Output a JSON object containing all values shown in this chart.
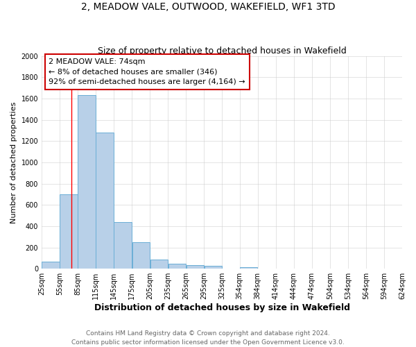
{
  "title": "2, MEADOW VALE, OUTWOOD, WAKEFIELD, WF1 3TD",
  "subtitle": "Size of property relative to detached houses in Wakefield",
  "xlabel": "Distribution of detached houses by size in Wakefield",
  "ylabel": "Number of detached properties",
  "bar_left_edges": [
    25,
    55,
    85,
    115,
    145,
    175,
    205,
    235,
    265,
    295,
    325,
    354,
    384,
    414,
    444,
    474,
    504,
    534,
    564,
    594
  ],
  "bar_widths": [
    30,
    30,
    30,
    30,
    30,
    30,
    30,
    30,
    30,
    30,
    29,
    30,
    30,
    30,
    30,
    30,
    30,
    30,
    30,
    30
  ],
  "bar_heights": [
    65,
    700,
    1630,
    1280,
    440,
    250,
    85,
    50,
    35,
    25,
    0,
    15,
    0,
    0,
    0,
    0,
    0,
    0,
    0,
    0
  ],
  "bar_color": "#b8d0e8",
  "bar_edge_color": "#6aaed6",
  "bar_edge_width": 0.7,
  "xticklabels": [
    "25sqm",
    "55sqm",
    "85sqm",
    "115sqm",
    "145sqm",
    "175sqm",
    "205sqm",
    "235sqm",
    "265sqm",
    "295sqm",
    "325sqm",
    "354sqm",
    "384sqm",
    "414sqm",
    "444sqm",
    "474sqm",
    "504sqm",
    "534sqm",
    "564sqm",
    "594sqm",
    "624sqm"
  ],
  "xtick_positions": [
    25,
    55,
    85,
    115,
    145,
    175,
    205,
    235,
    265,
    295,
    325,
    354,
    384,
    414,
    444,
    474,
    504,
    534,
    564,
    594,
    624
  ],
  "ylim": [
    0,
    2000
  ],
  "xlim": [
    25,
    624
  ],
  "yticks": [
    0,
    200,
    400,
    600,
    800,
    1000,
    1200,
    1400,
    1600,
    1800,
    2000
  ],
  "red_line_x": 74,
  "annotation_title": "2 MEADOW VALE: 74sqm",
  "annotation_line2": "← 8% of detached houses are smaller (346)",
  "annotation_line3": "92% of semi-detached houses are larger (4,164) →",
  "annotation_box_color": "#ffffff",
  "annotation_box_edge_color": "#cc0000",
  "footer_line1": "Contains HM Land Registry data © Crown copyright and database right 2024.",
  "footer_line2": "Contains public sector information licensed under the Open Government Licence v3.0.",
  "grid_color": "#c8c8c8",
  "background_color": "#ffffff",
  "title_fontsize": 10,
  "subtitle_fontsize": 9,
  "xlabel_fontsize": 9,
  "ylabel_fontsize": 8,
  "tick_fontsize": 7,
  "annotation_fontsize": 8,
  "footer_fontsize": 6.5
}
